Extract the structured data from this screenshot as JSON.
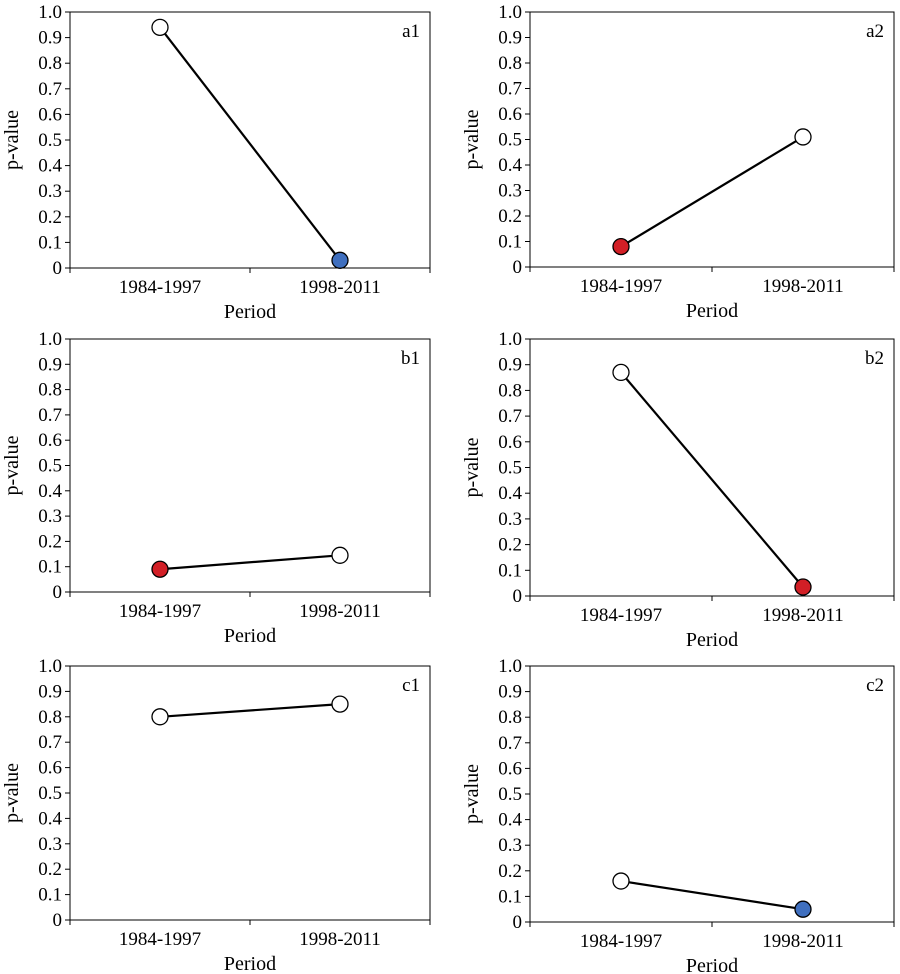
{
  "colors": {
    "open_marker": "#ffffff",
    "blue_marker": "#3f6fbf",
    "red_marker": "#d21f26",
    "line": "#000000"
  },
  "chart_data": [
    {
      "type": "line",
      "panel": "a1",
      "categories": [
        "1984-1997",
        "1998-2011"
      ],
      "values": [
        0.94,
        0.03
      ],
      "marker_fill": [
        "open",
        "blue"
      ],
      "xlabel": "Period",
      "ylabel": "p-value",
      "ylim": [
        0,
        1.0
      ],
      "yticks": [
        "0",
        "0.1",
        "0.2",
        "0.3",
        "0.4",
        "0.5",
        "0.6",
        "0.7",
        "0.8",
        "0.9",
        "1.0"
      ],
      "grid": false
    },
    {
      "type": "line",
      "panel": "a2",
      "categories": [
        "1984-1997",
        "1998-2011"
      ],
      "values": [
        0.08,
        0.51
      ],
      "marker_fill": [
        "red",
        "open"
      ],
      "xlabel": "Period",
      "ylabel": "p-value",
      "ylim": [
        0,
        1.0
      ],
      "yticks": [
        "0",
        "0.1",
        "0.2",
        "0.3",
        "0.4",
        "0.5",
        "0.6",
        "0.7",
        "0.8",
        "0.9",
        "1.0"
      ],
      "grid": false
    },
    {
      "type": "line",
      "panel": "b1",
      "categories": [
        "1984-1997",
        "1998-2011"
      ],
      "values": [
        0.09,
        0.145
      ],
      "marker_fill": [
        "red",
        "open"
      ],
      "xlabel": "Period",
      "ylabel": "p-value",
      "ylim": [
        0,
        1.0
      ],
      "yticks": [
        "0",
        "0.1",
        "0.2",
        "0.3",
        "0.4",
        "0.5",
        "0.6",
        "0.7",
        "0.8",
        "0.9",
        "1.0"
      ],
      "grid": false
    },
    {
      "type": "line",
      "panel": "b2",
      "categories": [
        "1984-1997",
        "1998-2011"
      ],
      "values": [
        0.87,
        0.035
      ],
      "marker_fill": [
        "open",
        "red"
      ],
      "xlabel": "Period",
      "ylabel": "p-value",
      "ylim": [
        0,
        1.0
      ],
      "yticks": [
        "0",
        "0.1",
        "0.2",
        "0.3",
        "0.4",
        "0.5",
        "0.6",
        "0.7",
        "0.8",
        "0.9",
        "1.0"
      ],
      "grid": false
    },
    {
      "type": "line",
      "panel": "c1",
      "categories": [
        "1984-1997",
        "1998-2011"
      ],
      "values": [
        0.8,
        0.85
      ],
      "marker_fill": [
        "open",
        "open"
      ],
      "xlabel": "Period",
      "ylabel": "p-value",
      "ylim": [
        0,
        1.0
      ],
      "yticks": [
        "0",
        "0.1",
        "0.2",
        "0.3",
        "0.4",
        "0.5",
        "0.6",
        "0.7",
        "0.8",
        "0.9",
        "1.0"
      ],
      "grid": false
    },
    {
      "type": "line",
      "panel": "c2",
      "categories": [
        "1984-1997",
        "1998-2011"
      ],
      "values": [
        0.16,
        0.05
      ],
      "marker_fill": [
        "open",
        "blue"
      ],
      "xlabel": "Period",
      "ylabel": "p-value",
      "ylim": [
        0,
        1.0
      ],
      "yticks": [
        "0",
        "0.1",
        "0.2",
        "0.3",
        "0.4",
        "0.5",
        "0.6",
        "0.7",
        "0.8",
        "0.9",
        "1.0"
      ],
      "grid": false
    }
  ]
}
